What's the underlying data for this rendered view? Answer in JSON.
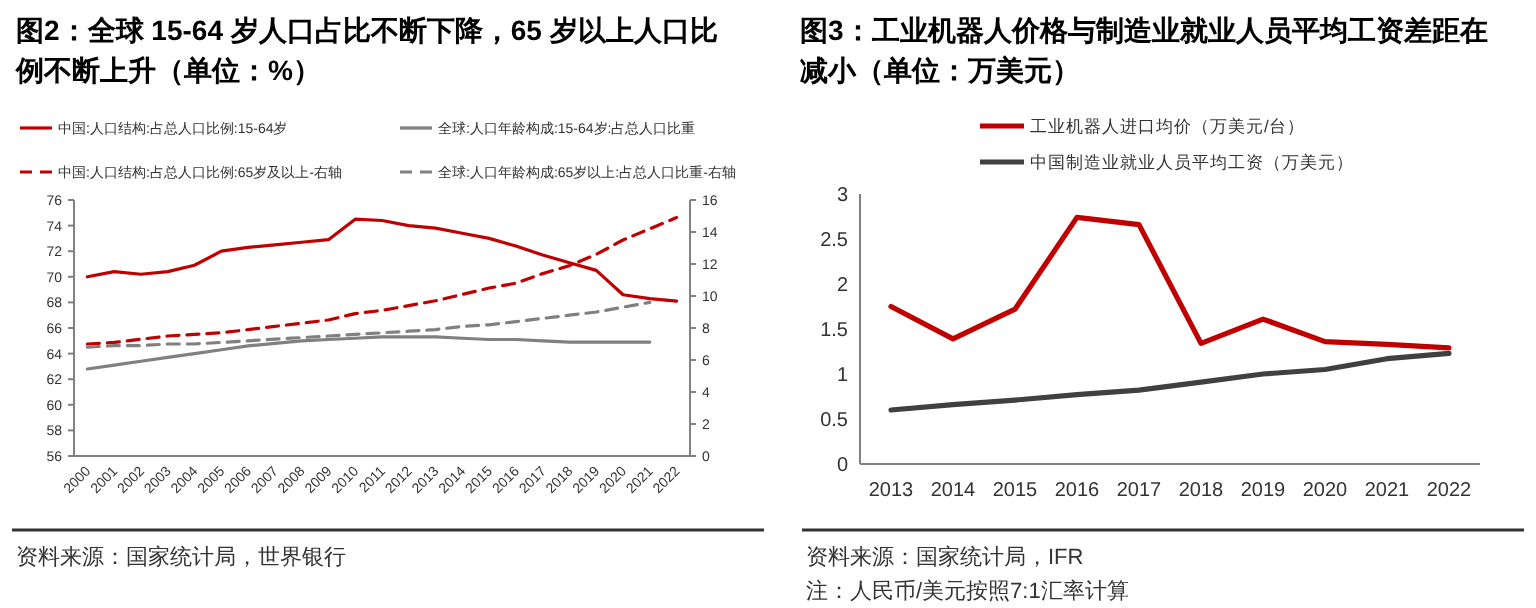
{
  "chart_data": [
    {
      "type": "line",
      "title": "图2：全球 15-64 岁人口占比不断下降，65 岁以上人口比例不断上升（单位：%）",
      "categories": [
        "2000",
        "2001",
        "2002",
        "2003",
        "2004",
        "2005",
        "2006",
        "2007",
        "2008",
        "2009",
        "2010",
        "2011",
        "2012",
        "2013",
        "2014",
        "2015",
        "2016",
        "2017",
        "2018",
        "2019",
        "2020",
        "2021",
        "2022"
      ],
      "series": [
        {
          "name": "中国:人口结构:占总人口比例:15-64岁",
          "color": "#c00000",
          "line_style": "solid",
          "values": [
            70.0,
            70.4,
            70.2,
            70.4,
            70.9,
            72.0,
            72.3,
            72.5,
            72.7,
            72.9,
            74.5,
            74.4,
            74.0,
            73.8,
            73.4,
            73.0,
            72.4,
            71.7,
            71.1,
            70.5,
            68.6,
            68.3,
            68.1
          ]
        },
        {
          "name": "全球:人口年龄构成:15-64岁:占总人口比重",
          "color": "#808080",
          "line_style": "solid",
          "values": [
            62.8,
            63.1,
            63.4,
            63.7,
            64.0,
            64.3,
            64.6,
            64.8,
            65.0,
            65.1,
            65.2,
            65.3,
            65.3,
            65.3,
            65.2,
            65.1,
            65.1,
            65.0,
            64.9,
            64.9,
            64.9,
            64.9,
            null
          ]
        },
        {
          "name": "中国:人口结构:占总人口比例:65岁及以上-右轴",
          "color": "#c00000",
          "line_style": "dashed",
          "axis": "y2",
          "values": [
            7.0,
            7.1,
            7.3,
            7.5,
            7.6,
            7.7,
            7.9,
            8.1,
            8.3,
            8.5,
            8.9,
            9.1,
            9.4,
            9.7,
            10.1,
            10.5,
            10.8,
            11.4,
            11.9,
            12.6,
            13.5,
            14.2,
            14.9
          ]
        },
        {
          "name": "全球:人口年龄构成:65岁以上:占总人口比重-右轴",
          "color": "#808080",
          "line_style": "dashed",
          "axis": "y2",
          "values": [
            6.8,
            6.9,
            6.9,
            7.0,
            7.0,
            7.1,
            7.2,
            7.3,
            7.4,
            7.5,
            7.6,
            7.7,
            7.8,
            7.9,
            8.1,
            8.2,
            8.4,
            8.6,
            8.8,
            9.0,
            9.3,
            9.6,
            null
          ]
        }
      ],
      "ylim": [
        56,
        76
      ],
      "yticks": [
        56,
        58,
        60,
        62,
        64,
        66,
        68,
        70,
        72,
        74,
        76
      ],
      "y2lim": [
        0,
        16
      ],
      "y2ticks": [
        0,
        2,
        4,
        6,
        8,
        10,
        12,
        14,
        16
      ],
      "legend": "top",
      "annotations": [
        "资料来源：国家统计局，世界银行"
      ]
    },
    {
      "type": "line",
      "title": "图3：工业机器人价格与制造业就业人员平均工资差距在减小（单位：万美元）",
      "categories": [
        "2013",
        "2014",
        "2015",
        "2016",
        "2017",
        "2018",
        "2019",
        "2020",
        "2021",
        "2022"
      ],
      "series": [
        {
          "name": "工业机器人进口均价（万美元/台）",
          "color": "#c00000",
          "values": [
            1.75,
            1.39,
            1.72,
            2.74,
            2.66,
            1.34,
            1.61,
            1.36,
            1.33,
            1.29
          ]
        },
        {
          "name": "中国制造业就业人员平均工资（万美元）",
          "color": "#404040",
          "values": [
            0.6,
            0.66,
            0.71,
            0.77,
            0.82,
            0.91,
            1.0,
            1.05,
            1.17,
            1.23
          ]
        }
      ],
      "ylim": [
        0,
        3
      ],
      "yticks": [
        0,
        0.5,
        1,
        1.5,
        2,
        2.5,
        3
      ],
      "legend": "top",
      "annotations": [
        "资料来源：国家统计局，IFR",
        "注：人民币/美元按照7:1汇率计算"
      ]
    }
  ]
}
